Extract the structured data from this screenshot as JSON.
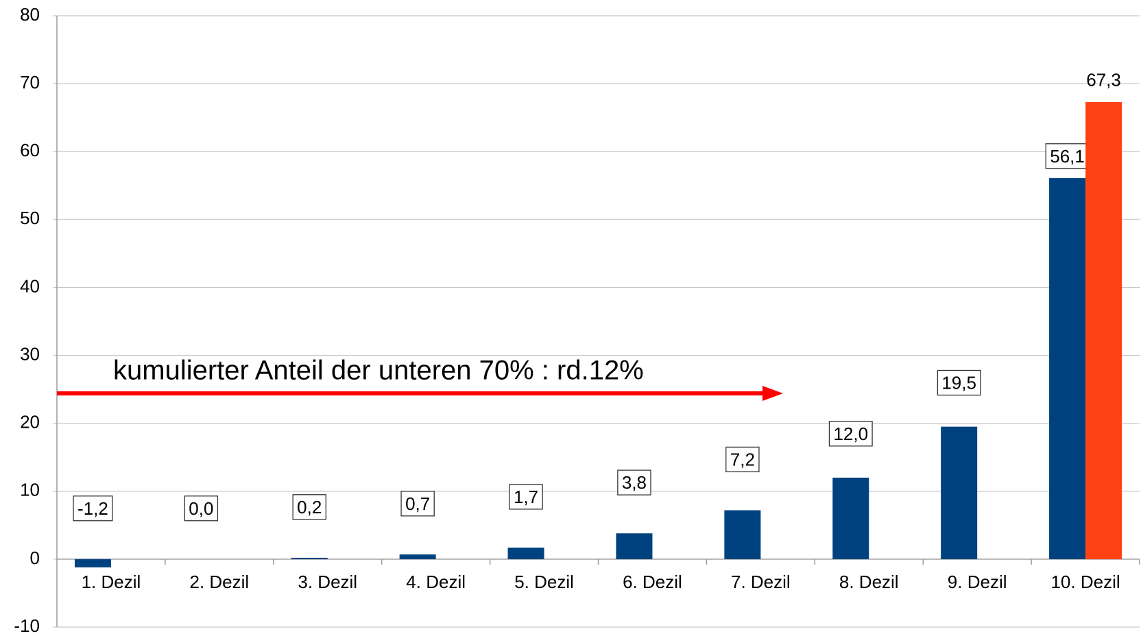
{
  "chart_data": {
    "type": "bar",
    "categories": [
      "1. Dezil",
      "2. Dezil",
      "3. Dezil",
      "4. Dezil",
      "5. Dezil",
      "6. Dezil",
      "7. Dezil",
      "8. Dezil",
      "9. Dezil",
      "10. Dezil"
    ],
    "series": [
      {
        "color": "#00427f",
        "values": [
          -1.2,
          0.0,
          0.2,
          0.7,
          1.7,
          3.8,
          7.2,
          12.0,
          19.5,
          56.1
        ],
        "value_labels": [
          "-1,2",
          "0,0",
          "0,2",
          "0,7",
          "1,7",
          "3,8",
          "7,2",
          "12,0",
          "19,5",
          "56,1"
        ]
      },
      {
        "color": "#ff4213",
        "values": [
          null,
          null,
          null,
          null,
          null,
          null,
          null,
          null,
          null,
          67.3
        ],
        "value_labels": [
          null,
          null,
          null,
          null,
          null,
          null,
          null,
          null,
          null,
          "67,3"
        ]
      }
    ],
    "ylim": [
      -10,
      80
    ],
    "yticks": [
      -10,
      0,
      10,
      20,
      30,
      40,
      50,
      60,
      70,
      80
    ],
    "grid": true,
    "annotation": "kumulierter Anteil der unteren 70% : rd.12%",
    "annotation_color": "#ff0000"
  }
}
